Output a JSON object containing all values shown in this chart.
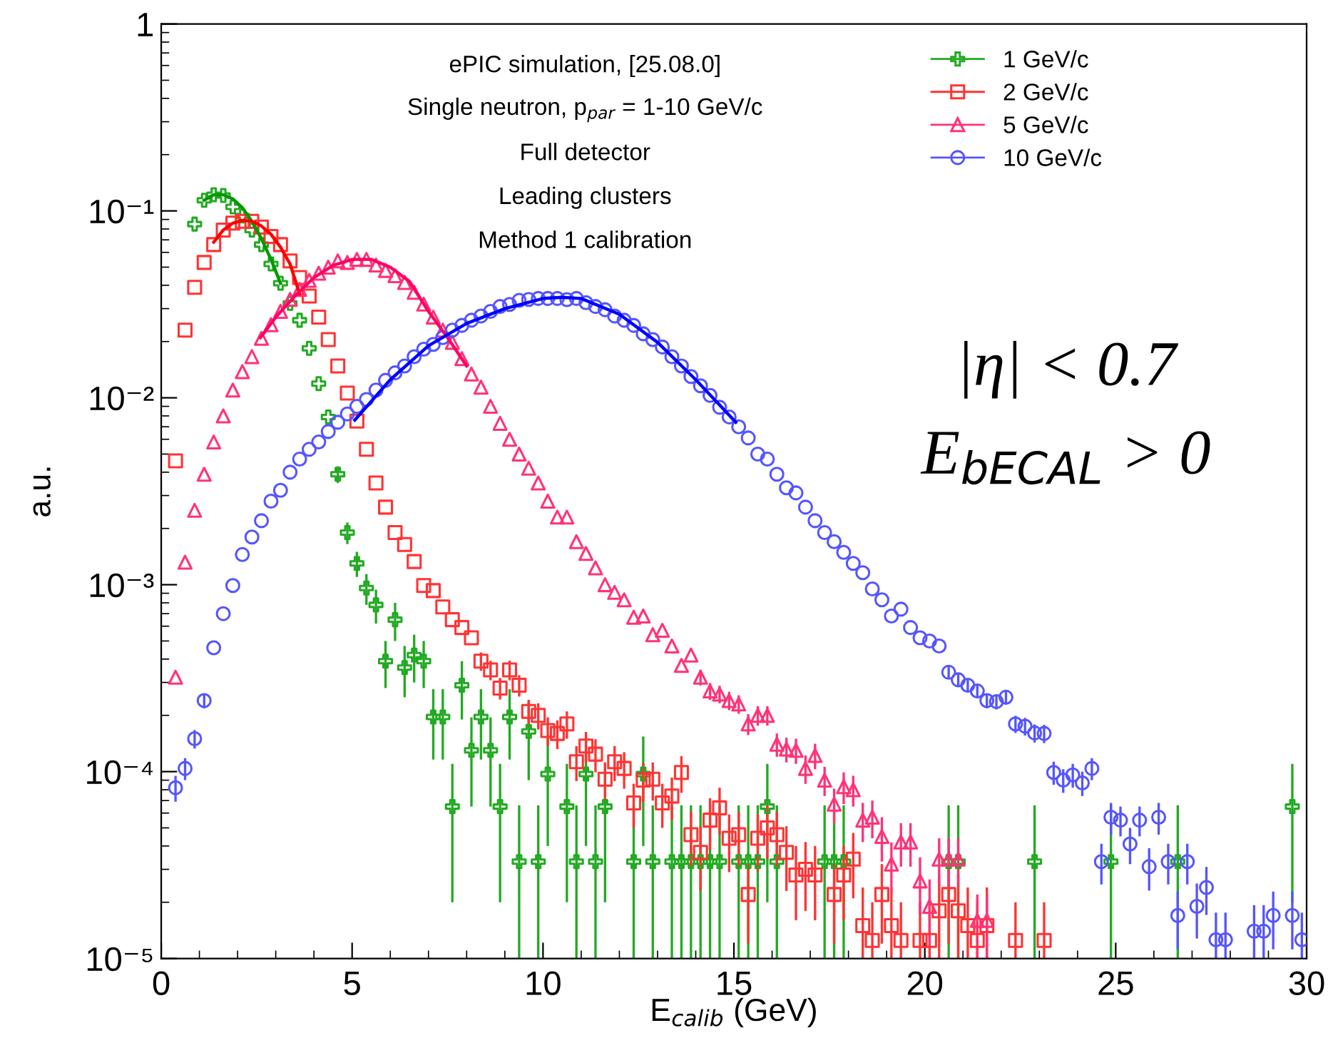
{
  "chart_data": {
    "type": "scatter",
    "xlabel": "E$_{calib}$ (GeV)",
    "ylabel": "a.u.",
    "xlim": [
      0,
      30
    ],
    "xticks": [
      0,
      5,
      10,
      15,
      20,
      25,
      30
    ],
    "ylim": [
      1e-05,
      1
    ],
    "yticks": [
      {
        "value": 1e-05,
        "label": "10⁻⁵"
      },
      {
        "value": 0.0001,
        "label": "10⁻⁴"
      },
      {
        "value": 0.001,
        "label": "10⁻³"
      },
      {
        "value": 0.01,
        "label": "10⁻²"
      },
      {
        "value": 0.1,
        "label": "10⁻¹"
      },
      1
    ],
    "log": "y",
    "grid": false,
    "legend": "top right",
    "annotations": [
      "ePIC simulation, [25.08.0]",
      "Single neutron, p$_{par}$ = 1-10 GeV/c",
      "Full detector",
      "Leading clusters",
      "Method 1 calibration",
      "|η| < 0.7",
      "E$_{bECAL}$ > 0"
    ],
    "series": [
      {
        "name": "1 GeV/c",
        "marker": "cross",
        "color": "#22aa22",
        "x": [
          0.875,
          1.125,
          1.375,
          1.625,
          1.875,
          2.125,
          2.375,
          2.625,
          2.875,
          3.125,
          3.375,
          3.625,
          3.875,
          4.125,
          4.375,
          4.625,
          4.875,
          5.125,
          5.375,
          5.625,
          5.875,
          6.125,
          6.375,
          6.625,
          6.875,
          7.125,
          7.375,
          7.625,
          7.875,
          8.125,
          8.375,
          8.625,
          8.875,
          9.125,
          9.375,
          9.625,
          9.875,
          10.125,
          10.625,
          10.875,
          11.125,
          11.375,
          11.625,
          12.375,
          12.625,
          12.875,
          13.375,
          13.625,
          13.875,
          14.125,
          14.375,
          14.625,
          15.125,
          15.375,
          15.625,
          15.875,
          16.125,
          17.375,
          17.625,
          17.875,
          20.625,
          20.875,
          22.875,
          24.875,
          26.625,
          29.625
        ],
        "values": [
          0.085,
          0.114,
          0.122,
          0.121,
          0.105,
          0.094,
          0.079,
          0.066,
          0.052,
          0.041,
          0.032,
          0.026,
          0.0184,
          0.0119,
          0.0079,
          0.0039,
          0.0019,
          0.0013,
          0.00096,
          0.00078,
          0.00039,
          0.00065,
          0.00036,
          0.00042,
          0.00039,
          0.000196,
          0.000196,
          6.5e-05,
          0.00029,
          0.00013,
          0.000196,
          0.00013,
          6.5e-05,
          0.000196,
          3.3e-05,
          0.000164,
          3.3e-05,
          9.7e-05,
          6.5e-05,
          3.3e-05,
          9.7e-05,
          3.3e-05,
          6.5e-05,
          3.3e-05,
          9.7e-05,
          3.3e-05,
          3.3e-05,
          3.3e-05,
          3.3e-05,
          3.3e-05,
          3.3e-05,
          3.3e-05,
          3.3e-05,
          3.3e-05,
          3.3e-05,
          6.5e-05,
          3.3e-05,
          3.3e-05,
          3.3e-05,
          3.3e-05,
          3.3e-05,
          3.3e-05,
          3.3e-05,
          3.3e-05,
          3.3e-05,
          6.5e-05
        ],
        "errors": [
          null,
          null,
          null,
          null,
          null,
          null,
          null,
          null,
          null,
          null,
          null,
          null,
          null,
          null,
          null,
          [
            0.0035,
            0.0043
          ],
          [
            0.00165,
            0.00215
          ],
          [
            0.0011,
            0.0015
          ],
          [
            0.00078,
            0.00114
          ],
          [
            0.00062,
            0.00094
          ],
          [
            0.00028,
            0.0005
          ],
          [
            0.0005,
            0.0008
          ],
          [
            0.00025,
            0.00047
          ],
          [
            0.0003,
            0.00054
          ],
          [
            0.00028,
            0.0005
          ],
          [
            0.000116,
            0.000276
          ],
          [
            0.000116,
            0.000276
          ],
          [
            2e-05,
            0.00011
          ],
          [
            0.00019,
            0.00039
          ],
          [
            6.5e-05,
            0.000195
          ],
          [
            0.000116,
            0.000276
          ],
          [
            6.5e-05,
            0.000195
          ],
          [
            2e-05,
            0.00011
          ],
          [
            0.000116,
            0.000276
          ],
          [
            1e-05,
            6.6e-05
          ],
          [
            9e-05,
            0.000237
          ],
          [
            1e-05,
            6.6e-05
          ],
          [
            4e-05,
            0.000154
          ],
          [
            2e-05,
            0.00011
          ],
          [
            1e-05,
            6.6e-05
          ],
          [
            4e-05,
            0.000154
          ],
          [
            1e-05,
            6.6e-05
          ],
          [
            2e-05,
            0.00011
          ],
          [
            1e-05,
            6.6e-05
          ],
          [
            4e-05,
            0.000154
          ],
          [
            1e-05,
            6.6e-05
          ],
          [
            1e-05,
            6.6e-05
          ],
          [
            1e-05,
            6.6e-05
          ],
          [
            1e-05,
            6.6e-05
          ],
          [
            1e-05,
            6.6e-05
          ],
          [
            1e-05,
            6.6e-05
          ],
          [
            1e-05,
            6.6e-05
          ],
          [
            1e-05,
            6.6e-05
          ],
          [
            1e-05,
            6.6e-05
          ],
          [
            1e-05,
            6.6e-05
          ],
          [
            2e-05,
            0.00011
          ],
          [
            1e-05,
            6.6e-05
          ],
          [
            1e-05,
            6.6e-05
          ],
          [
            1e-05,
            6.6e-05
          ],
          [
            1e-05,
            6.6e-05
          ],
          [
            1e-05,
            6.6e-05
          ],
          [
            1e-05,
            6.6e-05
          ],
          [
            1e-05,
            6.6e-05
          ],
          [
            1e-05,
            6.6e-05
          ],
          [
            1e-05,
            6.6e-05
          ],
          [
            2e-05,
            0.00011
          ]
        ]
      },
      {
        "name": "2 GeV/c",
        "marker": "square",
        "color": "#ff3333",
        "x": [
          0.375,
          0.625,
          0.875,
          1.125,
          1.375,
          1.625,
          1.875,
          2.125,
          2.375,
          2.625,
          2.875,
          3.125,
          3.375,
          3.625,
          3.875,
          4.125,
          4.375,
          4.625,
          4.875,
          5.125,
          5.375,
          5.625,
          5.875,
          6.125,
          6.375,
          6.625,
          6.875,
          7.125,
          7.375,
          7.625,
          7.875,
          8.125,
          8.375,
          8.625,
          8.875,
          9.125,
          9.375,
          9.625,
          9.875,
          10.125,
          10.375,
          10.625,
          10.875,
          11.125,
          11.375,
          11.625,
          11.875,
          12.125,
          12.375,
          12.625,
          12.875,
          13.125,
          13.375,
          13.625,
          13.875,
          14.125,
          14.375,
          14.625,
          14.875,
          15.125,
          15.375,
          15.625,
          15.875,
          16.125,
          16.375,
          16.625,
          16.875,
          17.125,
          17.625,
          17.875,
          18.125,
          18.375,
          18.625,
          18.875,
          19.125,
          19.375,
          19.875,
          20.125,
          20.375,
          20.625,
          20.875,
          21.125,
          21.375,
          21.625,
          22.375,
          23.125
        ],
        "values": [
          0.0046,
          0.023,
          0.039,
          0.053,
          0.066,
          0.079,
          0.086,
          0.088,
          0.088,
          0.082,
          0.073,
          0.066,
          0.054,
          0.044,
          0.035,
          0.027,
          0.0205,
          0.0148,
          0.0106,
          0.0075,
          0.0053,
          0.0035,
          0.0026,
          0.0019,
          0.00164,
          0.00133,
          0.00099,
          0.00093,
          0.00076,
          0.00065,
          0.00059,
          0.00052,
          0.00039,
          0.00035,
          0.00028,
          0.00035,
          0.00029,
          0.00021,
          0.0002,
          0.000166,
          0.00016,
          0.00018,
          0.000113,
          0.000137,
          0.000124,
          9.1e-05,
          0.000113,
          0.000104,
          6.8e-05,
          9e-05,
          9.1e-05,
          6.8e-05,
          7.4e-05,
          9.9e-05,
          4.6e-05,
          3.7e-05,
          5.5e-05,
          6.4e-05,
          4.4e-05,
          4.6e-05,
          2.2e-05,
          4.4e-05,
          5e-05,
          4.6e-05,
          3.7e-05,
          2.8e-05,
          3e-05,
          2.8e-05,
          2.2e-05,
          2.8e-05,
          3.4e-05,
          1.5e-05,
          1.25e-05,
          2.2e-05,
          1.5e-05,
          1.25e-05,
          1.25e-05,
          1.25e-05,
          1.8e-05,
          2.2e-05,
          1.8e-05,
          1.5e-05,
          1.25e-05,
          1.5e-05,
          1.25e-05,
          1.25e-05
        ],
        "errors": [
          null,
          null,
          null,
          null,
          null,
          null,
          null,
          null,
          null,
          null,
          null,
          null,
          null,
          null,
          null,
          null,
          null,
          null,
          null,
          null,
          null,
          null,
          null,
          null,
          null,
          null,
          null,
          null,
          null,
          null,
          null,
          null,
          4.4e-05,
          4.2e-05,
          3.7e-05,
          4.2e-05,
          3.8e-05,
          3.2e-05,
          3.2e-05,
          2.9e-05,
          2.8e-05,
          3e-05,
          2.4e-05,
          2.6e-05,
          2.5e-05,
          2.1e-05,
          2.4e-05,
          2.3e-05,
          1.8e-05,
          2.1e-05,
          2.1e-05,
          1.8e-05,
          1.9e-05,
          2.2e-05,
          1.5e-05,
          1.4e-05,
          1.7e-05,
          1.8e-05,
          1.5e-05,
          1.5e-05,
          1e-05,
          1.5e-05,
          1.6e-05,
          1.5e-05,
          1.4e-05,
          1.2e-05,
          1.2e-05,
          1.2e-05,
          1e-05,
          1.2e-05,
          1.3e-05,
          [
            1e-05,
            2.4e-05
          ],
          [
            1e-05,
            2e-05
          ],
          1e-05,
          [
            1e-05,
            2.4e-05
          ],
          [
            1e-05,
            2e-05
          ],
          [
            1e-05,
            2e-05
          ],
          [
            1e-05,
            2e-05
          ],
          [
            1e-05,
            2.8e-05
          ],
          1e-05,
          [
            1e-05,
            2.8e-05
          ],
          [
            1e-05,
            2.4e-05
          ],
          [
            1e-05,
            2e-05
          ],
          [
            1e-05,
            2.4e-05
          ],
          [
            1e-05,
            2e-05
          ],
          [
            1e-05,
            2e-05
          ]
        ]
      },
      {
        "name": "5 GeV/c",
        "marker": "triangle",
        "color": "#ff3377",
        "x": [
          0.375,
          0.625,
          0.875,
          1.125,
          1.375,
          1.625,
          1.875,
          2.125,
          2.375,
          2.625,
          2.875,
          3.125,
          3.375,
          3.625,
          3.875,
          4.125,
          4.375,
          4.625,
          4.875,
          5.125,
          5.375,
          5.625,
          5.875,
          6.125,
          6.375,
          6.625,
          6.875,
          7.125,
          7.375,
          7.625,
          7.875,
          8.125,
          8.375,
          8.625,
          8.875,
          9.125,
          9.375,
          9.625,
          9.875,
          10.125,
          10.375,
          10.625,
          10.875,
          11.125,
          11.375,
          11.625,
          11.875,
          12.125,
          12.375,
          12.625,
          12.875,
          13.125,
          13.375,
          13.625,
          13.875,
          14.125,
          14.375,
          14.625,
          14.875,
          15.125,
          15.375,
          15.625,
          15.875,
          16.125,
          16.375,
          16.625,
          16.875,
          17.125,
          17.375,
          17.625,
          17.875,
          18.125,
          18.375,
          18.625,
          18.875,
          19.125,
          19.375,
          19.625,
          19.875,
          20.125,
          20.375,
          20.625,
          20.875,
          21.375,
          21.625
        ],
        "values": [
          0.00032,
          0.00132,
          0.0025,
          0.0039,
          0.0058,
          0.008,
          0.011,
          0.0138,
          0.0166,
          0.0208,
          0.0246,
          0.029,
          0.0336,
          0.038,
          0.0425,
          0.0464,
          0.05,
          0.054,
          0.053,
          0.055,
          0.055,
          0.0513,
          0.048,
          0.045,
          0.0414,
          0.0367,
          0.0317,
          0.027,
          0.023,
          0.0198,
          0.0162,
          0.0134,
          0.0114,
          0.009,
          0.0073,
          0.006,
          0.005,
          0.0042,
          0.0035,
          0.0028,
          0.0023,
          0.0023,
          0.0017,
          0.00147,
          0.00123,
          0.001,
          0.00091,
          0.00083,
          0.00067,
          0.00068,
          0.00054,
          0.00057,
          0.00047,
          0.00037,
          0.00042,
          0.00032,
          0.00027,
          0.00026,
          0.00024,
          0.00023,
          0.00018,
          0.0002,
          0.0002,
          0.00014,
          0.000132,
          0.00013,
          0.000104,
          0.000122,
          9e-05,
          6.7e-05,
          8.3e-05,
          8e-05,
          5.5e-05,
          5.7e-05,
          4.5e-05,
          3.2e-05,
          4.2e-05,
          4.2e-05,
          2.6e-05,
          1.9e-05,
          3.4e-05,
          3.4e-05,
          3.4e-05,
          1.6e-05,
          1.6e-05
        ],
        "errors": [
          null,
          null,
          null,
          null,
          null,
          null,
          null,
          null,
          null,
          null,
          null,
          null,
          null,
          null,
          null,
          null,
          null,
          null,
          null,
          null,
          null,
          null,
          null,
          null,
          null,
          null,
          null,
          null,
          null,
          null,
          null,
          null,
          null,
          null,
          null,
          null,
          null,
          null,
          null,
          null,
          null,
          null,
          null,
          null,
          null,
          null,
          null,
          null,
          null,
          null,
          null,
          null,
          null,
          null,
          null,
          3.1e-05,
          2.8e-05,
          2.8e-05,
          2.7e-05,
          2.6e-05,
          2.3e-05,
          2.4e-05,
          2.4e-05,
          2e-05,
          2e-05,
          2e-05,
          1.8e-05,
          1.9e-05,
          1.6e-05,
          1.4e-05,
          1.6e-05,
          1.5e-05,
          1.3e-05,
          1.3e-05,
          1.2e-05,
          9.8e-06,
          1.1e-05,
          1.1e-05,
          8.8e-06,
          7.5e-06,
          1e-05,
          1e-05,
          1e-05,
          6e-06,
          6e-06
        ]
      },
      {
        "name": "10 GeV/c",
        "marker": "circle",
        "color": "#5555ff",
        "x": [
          0.375,
          0.625,
          0.875,
          1.125,
          1.375,
          1.625,
          1.875,
          2.125,
          2.375,
          2.625,
          2.875,
          3.125,
          3.375,
          3.625,
          3.875,
          4.125,
          4.375,
          4.625,
          4.875,
          5.125,
          5.375,
          5.625,
          5.875,
          6.125,
          6.375,
          6.625,
          6.875,
          7.125,
          7.375,
          7.625,
          7.875,
          8.125,
          8.375,
          8.625,
          8.875,
          9.125,
          9.375,
          9.625,
          9.875,
          10.125,
          10.375,
          10.625,
          10.875,
          11.125,
          11.375,
          11.625,
          11.875,
          12.125,
          12.375,
          12.625,
          12.875,
          13.125,
          13.375,
          13.625,
          13.875,
          14.125,
          14.375,
          14.625,
          14.875,
          15.125,
          15.375,
          15.625,
          15.875,
          16.125,
          16.375,
          16.625,
          16.875,
          17.125,
          17.375,
          17.625,
          17.875,
          18.125,
          18.375,
          18.625,
          18.875,
          19.125,
          19.375,
          19.625,
          19.875,
          20.125,
          20.375,
          20.625,
          20.875,
          21.125,
          21.375,
          21.625,
          21.875,
          22.125,
          22.375,
          22.625,
          22.875,
          23.125,
          23.375,
          23.625,
          23.875,
          24.125,
          24.375,
          24.625,
          24.875,
          25.125,
          25.375,
          25.625,
          25.875,
          26.125,
          26.375,
          26.625,
          26.875,
          27.125,
          27.375,
          27.625,
          27.875,
          28.625,
          28.875,
          29.125,
          29.625,
          29.875
        ],
        "values": [
          8.2e-05,
          0.000104,
          0.00015,
          0.00024,
          0.00046,
          0.0007,
          0.00099,
          0.00145,
          0.0018,
          0.0022,
          0.0028,
          0.0032,
          0.004,
          0.0047,
          0.0053,
          0.0058,
          0.0066,
          0.0074,
          0.0082,
          0.009,
          0.0098,
          0.011,
          0.0124,
          0.0136,
          0.0148,
          0.0166,
          0.0182,
          0.0193,
          0.021,
          0.023,
          0.0244,
          0.026,
          0.0274,
          0.029,
          0.0308,
          0.0316,
          0.0332,
          0.0336,
          0.034,
          0.034,
          0.034,
          0.0335,
          0.034,
          0.0323,
          0.0308,
          0.0296,
          0.0274,
          0.026,
          0.0244,
          0.022,
          0.0205,
          0.0187,
          0.0166,
          0.0148,
          0.013,
          0.0116,
          0.0103,
          0.0089,
          0.0079,
          0.007,
          0.0061,
          0.005,
          0.0047,
          0.0039,
          0.0033,
          0.0031,
          0.0026,
          0.0022,
          0.0019,
          0.0017,
          0.00149,
          0.0013,
          0.00116,
          0.00095,
          0.00083,
          0.00068,
          0.00074,
          0.00059,
          0.00052,
          0.0005,
          0.00047,
          0.00034,
          0.00031,
          0.00029,
          0.00027,
          0.00024,
          0.000237,
          0.00025,
          0.00018,
          0.000175,
          0.000161,
          0.00016,
          9.9e-05,
          9e-05,
          9.6e-05,
          8.7e-05,
          0.000104,
          3.3e-05,
          5.7e-05,
          5.5e-05,
          4.1e-05,
          5.5e-05,
          3.1e-05,
          5.7e-05,
          3.3e-05,
          1.7e-05,
          3.3e-05,
          1.9e-05,
          2.4e-05,
          1.26e-05,
          1.26e-05,
          1.4e-05,
          1.4e-05,
          1.7e-05,
          1.7e-05,
          1.26e-05
        ],
        "errors": [
          1.3e-05,
          1.4e-05,
          1.7e-05,
          2.2e-05,
          null,
          null,
          null,
          null,
          null,
          null,
          null,
          null,
          null,
          null,
          null,
          null,
          null,
          null,
          null,
          null,
          null,
          null,
          null,
          null,
          null,
          null,
          null,
          null,
          null,
          null,
          null,
          null,
          null,
          null,
          null,
          null,
          null,
          null,
          null,
          null,
          null,
          null,
          null,
          null,
          null,
          null,
          null,
          null,
          null,
          null,
          null,
          null,
          null,
          null,
          null,
          null,
          null,
          null,
          null,
          null,
          null,
          null,
          null,
          null,
          null,
          null,
          null,
          null,
          null,
          null,
          null,
          null,
          null,
          null,
          null,
          null,
          null,
          null,
          null,
          null,
          null,
          2.6e-05,
          2.5e-05,
          2.4e-05,
          2.3e-05,
          2.2e-05,
          2.2e-05,
          2.2e-05,
          1.9e-05,
          1.9e-05,
          1.8e-05,
          1.8e-05,
          1.4e-05,
          1.3e-05,
          1.4e-05,
          1.3e-05,
          1.4e-05,
          8.1e-06,
          1.1e-05,
          1e-05,
          9e-06,
          1e-05,
          7.9e-06,
          1.1e-05,
          8.1e-06,
          5.8e-06,
          8.1e-06,
          6.2e-06,
          6.9e-06,
          [
            1e-05,
            1.76e-05
          ],
          [
            1e-05,
            1.76e-05
          ],
          [
            1e-05,
            1.93e-05
          ],
          [
            1e-05,
            1.93e-05
          ],
          5.8e-06,
          5.8e-06,
          [
            1e-05,
            1.76e-05
          ]
        ]
      },
      {
        "type": "line",
        "color": "#009900",
        "x": [
          1.125,
          1.375,
          1.625,
          1.875,
          2.125,
          2.375,
          2.625,
          2.875,
          3.125
        ],
        "values": [
          0.114,
          0.122,
          0.122,
          0.116,
          0.104,
          0.088,
          0.071,
          0.055,
          0.041
        ]
      },
      {
        "type": "line",
        "color": "#ff0000",
        "x": [
          1.375,
          1.625,
          1.875,
          2.125,
          2.375,
          2.625,
          2.875,
          3.125,
          3.375,
          3.625
        ],
        "values": [
          0.068,
          0.079,
          0.086,
          0.089,
          0.088,
          0.083,
          0.075,
          0.064,
          0.052,
          0.036
        ]
      },
      {
        "type": "line",
        "color": "#ff0066",
        "x": [
          2.6,
          3.0,
          3.5,
          4.0,
          4.5,
          5.0,
          5.5,
          6.0,
          6.5,
          7.0,
          7.5,
          8.0
        ],
        "values": [
          0.021,
          0.027,
          0.035,
          0.044,
          0.051,
          0.055,
          0.055,
          0.05,
          0.042,
          0.029,
          0.021,
          0.0148
        ]
      },
      {
        "type": "line",
        "color": "#0000ff",
        "x": [
          5.07,
          6,
          7,
          8,
          9,
          10,
          10.5,
          11,
          12,
          13,
          14,
          15.05
        ],
        "values": [
          0.0076,
          0.0125,
          0.019,
          0.025,
          0.03,
          0.034,
          0.0345,
          0.034,
          0.028,
          0.0198,
          0.0125,
          0.0074
        ]
      }
    ]
  }
}
